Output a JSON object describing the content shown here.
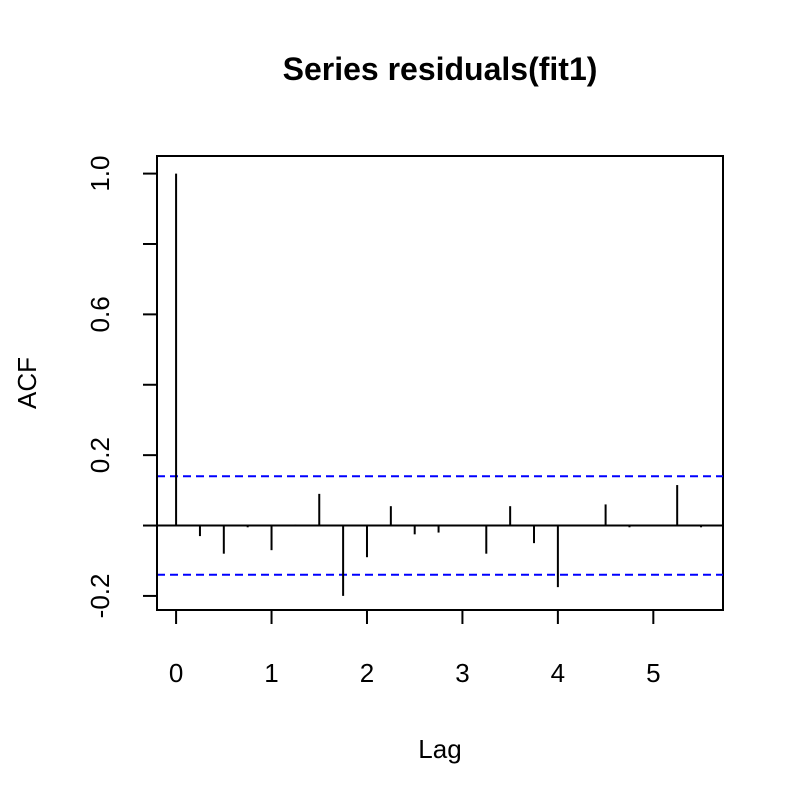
{
  "chart_data": {
    "type": "bar",
    "title": "Series  residuals(fit1)",
    "xlabel": "Lag",
    "ylabel": "ACF",
    "xlim": [
      -0.2,
      5.73
    ],
    "ylim": [
      -0.24,
      1.05
    ],
    "x_ticks": [
      0,
      1,
      2,
      3,
      4,
      5
    ],
    "x_tick_labels": [
      "0",
      "1",
      "2",
      "3",
      "4",
      "5"
    ],
    "y_ticks": [
      -0.2,
      0.0,
      0.2,
      0.4,
      0.6,
      0.8,
      1.0
    ],
    "y_tick_labels": [
      "-0.2",
      "",
      "0.2",
      "",
      "0.6",
      "",
      "1.0"
    ],
    "confidence_limit": 0.14,
    "confidence_color": "#0000ff",
    "grid": false,
    "lags": [
      0,
      0.25,
      0.5,
      0.75,
      1.0,
      1.25,
      1.5,
      1.75,
      2.0,
      2.25,
      2.5,
      2.75,
      3.0,
      3.25,
      3.5,
      3.75,
      4.0,
      4.25,
      4.5,
      4.75,
      5.0,
      5.25,
      5.5
    ],
    "values": [
      1.0,
      -0.03,
      -0.08,
      -0.005,
      -0.07,
      0.003,
      0.09,
      -0.2,
      -0.09,
      0.055,
      -0.025,
      -0.02,
      0.0,
      -0.08,
      0.055,
      -0.05,
      -0.175,
      0.0,
      0.06,
      -0.005,
      0.0,
      0.115,
      -0.005
    ]
  }
}
